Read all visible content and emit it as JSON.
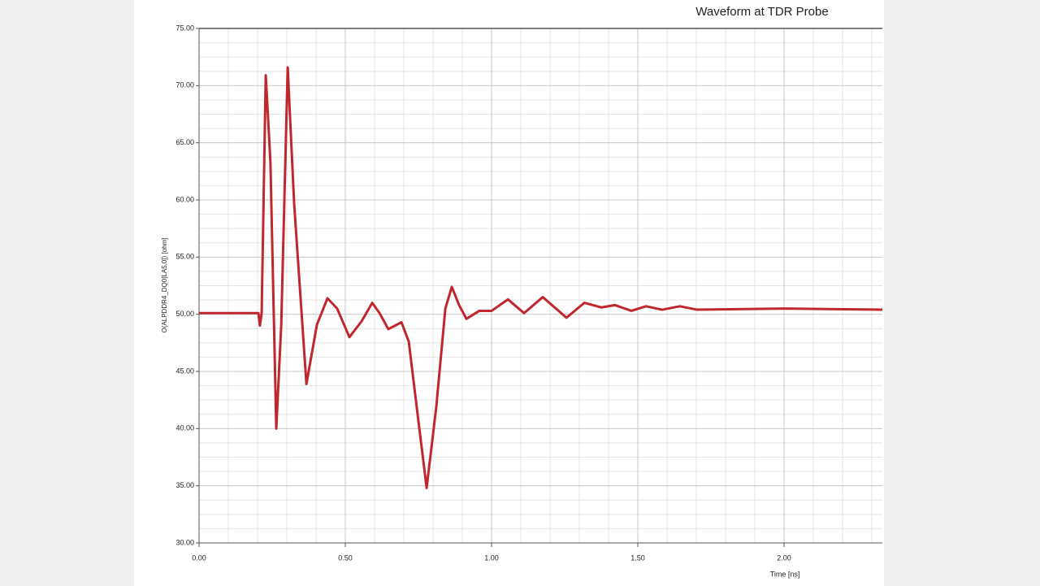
{
  "chart_data": {
    "type": "line",
    "title": "Waveform at TDR Probe",
    "ylabel": "O(ALPDDR4_DQ0[LA5,0]) [ohm]",
    "xlabel": "Time [ns]",
    "xlim": [
      0,
      2.336
    ],
    "ylim": [
      30,
      75
    ],
    "xticks": [
      {
        "value": 0,
        "label": "0.00"
      },
      {
        "value": 0.5,
        "label": "0.50"
      },
      {
        "value": 1,
        "label": "1.00"
      },
      {
        "value": 1.5,
        "label": "1.50"
      },
      {
        "value": 2,
        "label": "2.00"
      }
    ],
    "yticks": [
      {
        "value": 30,
        "label": "30.00"
      },
      {
        "value": 35,
        "label": "35.00"
      },
      {
        "value": 40,
        "label": "40.00"
      },
      {
        "value": 45,
        "label": "45.00"
      },
      {
        "value": 50,
        "label": "50.00"
      },
      {
        "value": 55,
        "label": "55.00"
      },
      {
        "value": 60,
        "label": "60.00"
      },
      {
        "value": 65,
        "label": "65.00"
      },
      {
        "value": 70,
        "label": "70.00"
      },
      {
        "value": 75,
        "label": "75.00"
      }
    ],
    "grid": true,
    "x": [
      0,
      0.203,
      0.208,
      0.214,
      0.228,
      0.244,
      0.264,
      0.281,
      0.303,
      0.325,
      0.367,
      0.403,
      0.439,
      0.472,
      0.514,
      0.556,
      0.592,
      0.617,
      0.647,
      0.692,
      0.717,
      0.744,
      0.778,
      0.811,
      0.842,
      0.864,
      0.889,
      0.914,
      0.958,
      1.0,
      1.056,
      1.111,
      1.175,
      1.256,
      1.317,
      1.375,
      1.422,
      1.478,
      1.528,
      1.583,
      1.644,
      1.703,
      2.003,
      2.336
    ],
    "series": [
      {
        "color": "#c0272d",
        "values": [
          50.1,
          50.1,
          49.0,
          50.1,
          70.9,
          63.3,
          40.0,
          49.1,
          71.6,
          59.7,
          43.9,
          49.1,
          51.4,
          50.5,
          48.0,
          49.4,
          51.0,
          50.1,
          48.7,
          49.3,
          47.6,
          41.9,
          34.8,
          41.9,
          50.5,
          52.4,
          50.8,
          49.6,
          50.3,
          50.3,
          51.3,
          50.1,
          51.5,
          49.7,
          51.0,
          50.6,
          50.8,
          50.3,
          50.7,
          50.4,
          50.7,
          50.4,
          50.5,
          50.4
        ]
      }
    ]
  }
}
